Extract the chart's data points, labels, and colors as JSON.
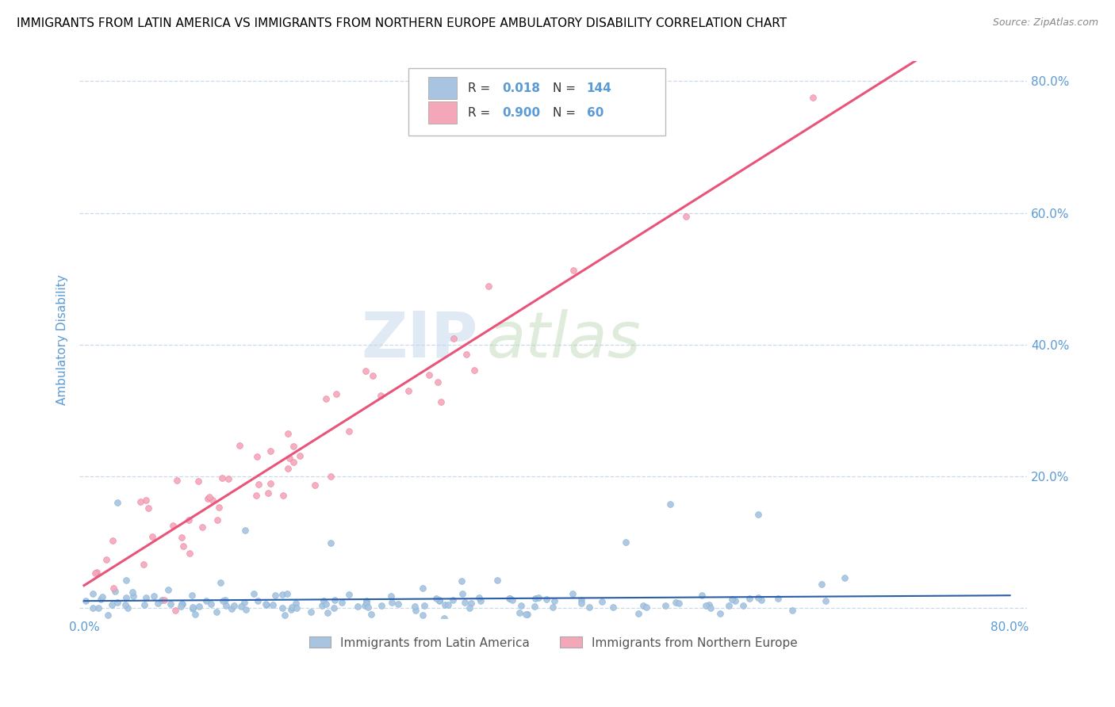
{
  "title": "IMMIGRANTS FROM LATIN AMERICA VS IMMIGRANTS FROM NORTHERN EUROPE AMBULATORY DISABILITY CORRELATION CHART",
  "source": "Source: ZipAtlas.com",
  "ylabel": "Ambulatory Disability",
  "x_min": 0.0,
  "x_max": 0.8,
  "y_min": -0.015,
  "y_max": 0.83,
  "blue_R": 0.018,
  "blue_N": 144,
  "pink_R": 0.9,
  "pink_N": 60,
  "blue_color": "#a8c4e0",
  "blue_edge_color": "#7aadd4",
  "blue_line_color": "#2a5ea8",
  "pink_color": "#f4a7b9",
  "pink_edge_color": "#e87a9a",
  "pink_line_color": "#e8547a",
  "legend_label_blue": "Immigrants from Latin America",
  "legend_label_pink": "Immigrants from Northern Europe",
  "watermark_zip": "ZIP",
  "watermark_atlas": "atlas",
  "title_fontsize": 11,
  "tick_color": "#5b9bd5",
  "grid_color": "#c8daea",
  "source_color": "#888888"
}
